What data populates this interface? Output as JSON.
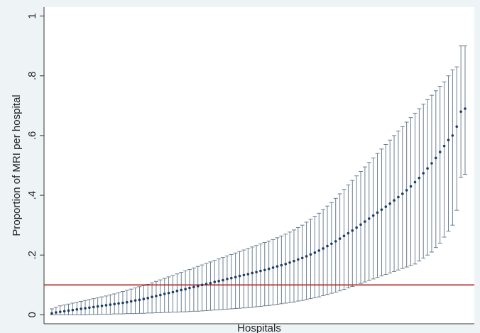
{
  "chart_data": {
    "type": "errorbar",
    "ylabel": "Proportion of MRI per hospital",
    "xlabel": "Hospitals",
    "ylim": [
      -0.03,
      1.03
    ],
    "yticks": [
      0,
      {
        "value": 0.2,
        "label": ".2"
      },
      {
        "value": 0.4,
        "label": ".4"
      },
      {
        "value": 0.6,
        "label": ".6"
      },
      {
        "value": 0.8,
        "label": ".8"
      },
      1
    ],
    "reference_line": 0.1,
    "reference_color": "#b22222",
    "point_color": "#1f3d63",
    "bar_color": "#5d7284",
    "values": [
      0.005,
      0.008,
      0.01,
      0.012,
      0.014,
      0.016,
      0.018,
      0.02,
      0.022,
      0.024,
      0.026,
      0.028,
      0.03,
      0.032,
      0.034,
      0.036,
      0.038,
      0.04,
      0.042,
      0.045,
      0.048,
      0.05,
      0.053,
      0.056,
      0.06,
      0.063,
      0.066,
      0.07,
      0.073,
      0.076,
      0.08,
      0.083,
      0.086,
      0.09,
      0.093,
      0.096,
      0.1,
      0.103,
      0.106,
      0.11,
      0.113,
      0.116,
      0.12,
      0.123,
      0.126,
      0.13,
      0.133,
      0.136,
      0.14,
      0.143,
      0.147,
      0.15,
      0.154,
      0.158,
      0.162,
      0.166,
      0.17,
      0.175,
      0.18,
      0.185,
      0.19,
      0.196,
      0.202,
      0.208,
      0.215,
      0.222,
      0.23,
      0.238,
      0.246,
      0.255,
      0.264,
      0.273,
      0.282,
      0.292,
      0.302,
      0.312,
      0.322,
      0.332,
      0.342,
      0.352,
      0.362,
      0.372,
      0.383,
      0.394,
      0.405,
      0.417,
      0.43,
      0.444,
      0.458,
      0.474,
      0.49,
      0.507,
      0.525,
      0.545,
      0.565,
      0.585,
      0.6,
      0.63,
      0.68,
      0.69
    ],
    "lower": [
      0,
      0,
      0,
      0,
      0,
      0,
      0,
      0,
      0,
      0.001,
      0.001,
      0.001,
      0.002,
      0.002,
      0.002,
      0.003,
      0.003,
      0.003,
      0.004,
      0.004,
      0.004,
      0.005,
      0.005,
      0.006,
      0.006,
      0.007,
      0.007,
      0.008,
      0.008,
      0.009,
      0.009,
      0.01,
      0.01,
      0.011,
      0.012,
      0.012,
      0.013,
      0.014,
      0.015,
      0.016,
      0.017,
      0.018,
      0.019,
      0.02,
      0.021,
      0.022,
      0.023,
      0.024,
      0.025,
      0.027,
      0.028,
      0.03,
      0.031,
      0.033,
      0.035,
      0.037,
      0.039,
      0.041,
      0.043,
      0.046,
      0.048,
      0.051,
      0.054,
      0.057,
      0.06,
      0.064,
      0.068,
      0.072,
      0.076,
      0.08,
      0.085,
      0.09,
      0.095,
      0.1,
      0.105,
      0.11,
      0.115,
      0.12,
      0.125,
      0.13,
      0.135,
      0.14,
      0.145,
      0.15,
      0.155,
      0.16,
      0.165,
      0.17,
      0.18,
      0.19,
      0.2,
      0.21,
      0.225,
      0.24,
      0.26,
      0.28,
      0.3,
      0.35,
      0.46,
      0.47
    ],
    "upper": [
      0.02,
      0.025,
      0.03,
      0.033,
      0.036,
      0.039,
      0.042,
      0.045,
      0.048,
      0.051,
      0.054,
      0.057,
      0.06,
      0.063,
      0.067,
      0.07,
      0.074,
      0.078,
      0.082,
      0.086,
      0.09,
      0.094,
      0.098,
      0.102,
      0.107,
      0.112,
      0.117,
      0.122,
      0.127,
      0.132,
      0.137,
      0.142,
      0.147,
      0.152,
      0.157,
      0.162,
      0.167,
      0.172,
      0.177,
      0.182,
      0.187,
      0.192,
      0.197,
      0.202,
      0.207,
      0.212,
      0.217,
      0.222,
      0.227,
      0.232,
      0.237,
      0.242,
      0.247,
      0.252,
      0.258,
      0.264,
      0.27,
      0.277,
      0.284,
      0.292,
      0.3,
      0.31,
      0.32,
      0.33,
      0.34,
      0.352,
      0.364,
      0.376,
      0.39,
      0.405,
      0.42,
      0.435,
      0.45,
      0.465,
      0.48,
      0.495,
      0.51,
      0.525,
      0.54,
      0.555,
      0.57,
      0.585,
      0.6,
      0.615,
      0.63,
      0.645,
      0.66,
      0.675,
      0.69,
      0.705,
      0.72,
      0.735,
      0.75,
      0.765,
      0.78,
      0.8,
      0.82,
      0.83,
      0.9,
      0.9
    ]
  }
}
